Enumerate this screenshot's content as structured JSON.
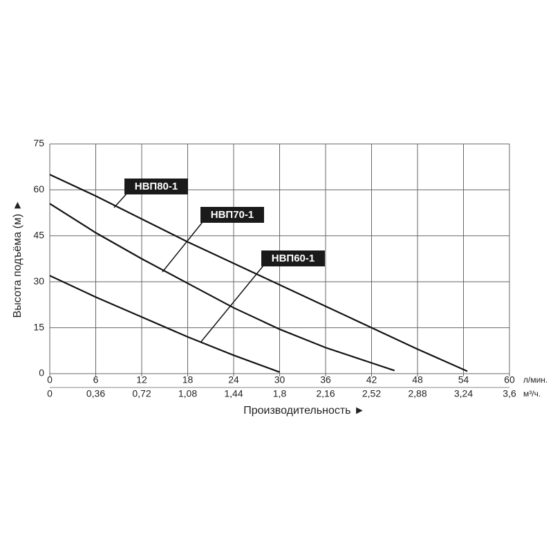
{
  "chart_data": {
    "type": "line",
    "xlabel": "Производительность ►",
    "ylabel": "Высота подъёма (м) ►",
    "x_unit": "л/мин.",
    "x2_unit": "м³/ч.",
    "xlim": [
      0,
      60
    ],
    "xticks": [
      0,
      6,
      12,
      18,
      24,
      30,
      36,
      42,
      48,
      54,
      60
    ],
    "x2lim": [
      0,
      3.6
    ],
    "x2ticks": [
      0,
      {
        "value": 0.36,
        "label": "0,36"
      },
      {
        "value": 0.72,
        "label": "0,72"
      },
      {
        "value": 1.08,
        "label": "1,08"
      },
      {
        "value": 1.44,
        "label": "1,44"
      },
      {
        "value": 1.8,
        "label": "1,8"
      },
      {
        "value": 2.16,
        "label": "2,16"
      },
      {
        "value": 2.52,
        "label": "2,52"
      },
      {
        "value": 2.88,
        "label": "2,88"
      },
      {
        "value": 3.24,
        "label": "3,24"
      },
      {
        "value": 3.6,
        "label": "3,6"
      }
    ],
    "ylim": [
      0,
      75
    ],
    "yticks": [
      0,
      15,
      30,
      45,
      60,
      75
    ],
    "grid": true,
    "series": [
      {
        "name": "НВП80-1",
        "color": "#111111",
        "x": [
          0,
          6,
          12,
          18,
          24,
          30,
          36,
          42,
          48,
          54.5
        ],
        "values": [
          65,
          58,
          50.5,
          43,
          36,
          29,
          22,
          15,
          8,
          0.8
        ]
      },
      {
        "name": "НВП70-1",
        "color": "#111111",
        "x": [
          0,
          6,
          12,
          18,
          24,
          30,
          36,
          42,
          45
        ],
        "values": [
          55.5,
          46,
          37.5,
          29.5,
          21.5,
          14.5,
          8.5,
          3.5,
          1
        ]
      },
      {
        "name": "НВП60-1",
        "color": "#111111",
        "x": [
          0,
          6,
          12,
          18,
          24,
          30
        ],
        "values": [
          32,
          25,
          18.5,
          12,
          6,
          0.5
        ]
      }
    ]
  }
}
